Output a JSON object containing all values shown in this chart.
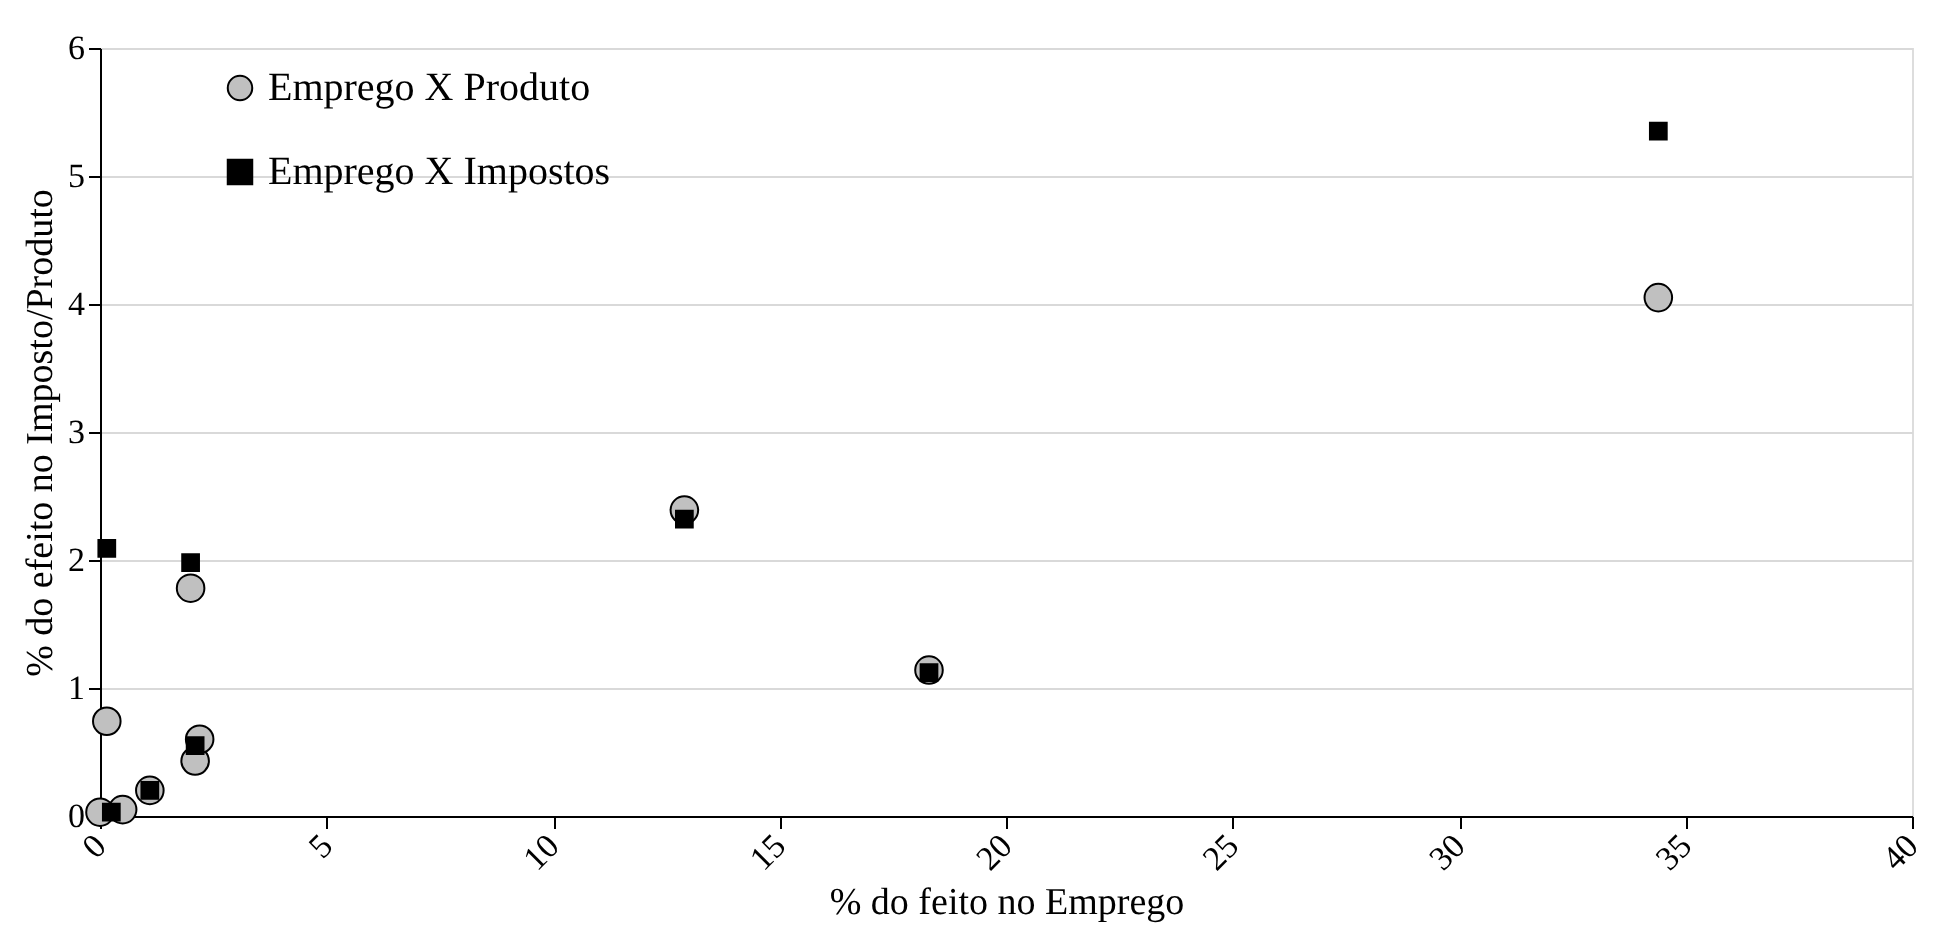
{
  "chart_data": {
    "type": "scatter",
    "xlabel": "% do feito no Emprego",
    "ylabel": "% do efeito no Imposto/Produto",
    "xlim": [
      0,
      40
    ],
    "xticks": [
      0,
      5,
      10,
      15,
      20,
      25,
      30,
      35,
      40
    ],
    "ylim": [
      0,
      6
    ],
    "yticks": [
      0,
      1,
      2,
      3,
      4,
      5,
      6
    ],
    "grid": "y",
    "legend": "top left",
    "series": [
      {
        "name": "Emprego X Produto",
        "color": "#c0c0c0",
        "marker": "circle",
        "x": [
          0.15,
          0.0,
          0.5,
          1.1,
          2.1,
          2.2,
          2.0,
          12.9,
          18.3,
          34.4
        ],
        "values": [
          0.74,
          0.03,
          0.05,
          0.2,
          0.43,
          0.6,
          1.78,
          2.39,
          1.14,
          4.05
        ]
      },
      {
        "name": "Emprego X Impostos",
        "color": "#000000",
        "marker": "square",
        "x": [
          0.15,
          2.0,
          0.25,
          1.1,
          2.1,
          12.9,
          18.3,
          34.4
        ],
        "values": [
          2.09,
          1.98,
          0.03,
          0.2,
          0.55,
          2.32,
          1.12,
          5.35
        ]
      }
    ]
  }
}
